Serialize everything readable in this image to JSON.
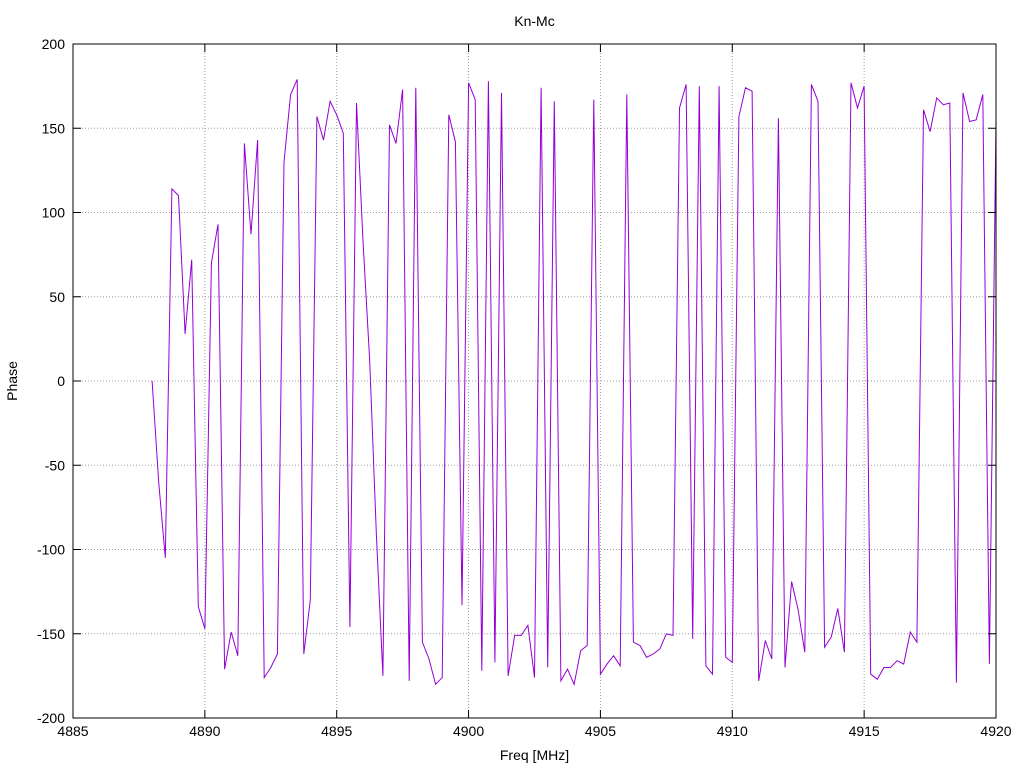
{
  "chart_data": {
    "type": "line",
    "title": "Kn-Mc",
    "xlabel": "Freq [MHz]",
    "ylabel": "Phase",
    "xlim": [
      4885,
      4920
    ],
    "ylim": [
      -200,
      200
    ],
    "xticks": [
      4885,
      4890,
      4895,
      4900,
      4905,
      4910,
      4915,
      4920
    ],
    "yticks": [
      -200,
      -150,
      -100,
      -50,
      0,
      50,
      100,
      150,
      200
    ],
    "grid": true,
    "color": "#9400d3",
    "series": [
      {
        "x": [
          4888.0,
          4888.25,
          4888.5,
          4888.75,
          4889.0,
          4889.25,
          4889.5,
          4889.75,
          4890.0,
          4890.25,
          4890.5,
          4890.75,
          4891.0,
          4891.25,
          4891.5,
          4891.75,
          4892.0,
          4892.25,
          4892.5,
          4892.75,
          4893.0,
          4893.25,
          4893.5,
          4893.75,
          4894.0,
          4894.25,
          4894.5,
          4894.75,
          4895.0,
          4895.25,
          4895.5,
          4895.75,
          4896.0,
          4896.25,
          4896.5,
          4896.75,
          4897.0,
          4897.25,
          4897.5,
          4897.75,
          4898.0,
          4898.25,
          4898.5,
          4898.75,
          4899.0,
          4899.25,
          4899.5,
          4899.75,
          4900.0,
          4900.25,
          4900.5,
          4900.75,
          4901.0,
          4901.25,
          4901.5,
          4901.75,
          4902.0,
          4902.25,
          4902.5,
          4902.75,
          4903.0,
          4903.25,
          4903.5,
          4903.75,
          4904.0,
          4904.25,
          4904.5,
          4904.75,
          4905.0,
          4905.25,
          4905.5,
          4905.75,
          4906.0,
          4906.25,
          4906.5,
          4906.75,
          4907.0,
          4907.25,
          4907.5,
          4907.75,
          4908.0,
          4908.25,
          4908.5,
          4908.75,
          4909.0,
          4909.25,
          4909.5,
          4909.75,
          4910.0,
          4910.25,
          4910.5,
          4910.75,
          4911.0,
          4911.25,
          4911.5,
          4911.75,
          4912.0,
          4912.25,
          4912.5,
          4912.75,
          4913.0,
          4913.25,
          4913.5,
          4913.75,
          4914.0,
          4914.25,
          4914.5,
          4914.75,
          4915.0,
          4915.25,
          4915.5,
          4915.75,
          4916.0,
          4916.25,
          4916.5,
          4916.75,
          4917.0,
          4917.25,
          4917.5,
          4917.75,
          4918.0,
          4918.25,
          4918.5,
          4918.75,
          4919.0,
          4919.25,
          4919.5,
          4919.75,
          4920.0
        ],
        "y": [
          0,
          -60,
          -105,
          114,
          110,
          28,
          72,
          -134,
          -147,
          70,
          93,
          -171,
          -149,
          -163,
          141,
          87,
          143,
          -176,
          -170,
          -162,
          130,
          170,
          179,
          -162,
          -130,
          157,
          143,
          166,
          158,
          147,
          -146,
          165,
          82,
          12,
          -90,
          -175,
          152,
          141,
          173,
          -178,
          174,
          -155,
          -165,
          -180,
          -176,
          158,
          142,
          -133,
          177,
          167,
          -172,
          178,
          -167,
          171,
          -175,
          -151,
          -151,
          -145,
          -176,
          174,
          -170,
          166,
          -178,
          -171,
          -180,
          -160,
          -157,
          167,
          -174,
          -168,
          -163,
          -169,
          170,
          -155,
          -157,
          -164,
          -162,
          -159,
          -150,
          -151,
          162,
          176,
          -153,
          175,
          -169,
          -174,
          175,
          -164,
          -167,
          157,
          174,
          172,
          -178,
          -154,
          -165,
          156,
          -170,
          -119,
          -136,
          -161,
          176,
          166,
          -158,
          -152,
          -135,
          -161,
          177,
          162,
          175,
          -174,
          -177,
          -170,
          -170,
          -166,
          -168,
          -149,
          -155,
          161,
          148,
          168,
          164,
          165,
          -179,
          171,
          154,
          155,
          170,
          -168,
          155
        ]
      }
    ]
  }
}
